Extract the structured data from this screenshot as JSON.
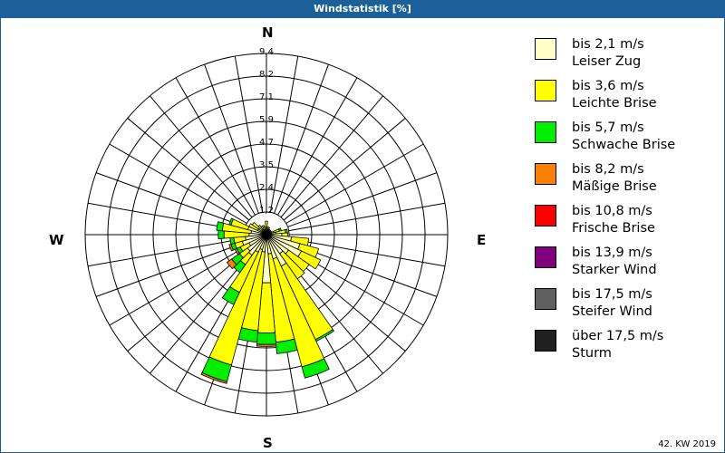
{
  "title": "Windstatistik [%]",
  "footer": "42. KW 2019",
  "compass": {
    "n": "N",
    "e": "E",
    "s": "S",
    "w": "W"
  },
  "legend": [
    {
      "line1": "bis 2,1 m/s",
      "line2": "Leiser Zug",
      "color": "#ffffc8"
    },
    {
      "line1": "bis 3,6 m/s",
      "line2": "Leichte Brise",
      "color": "#ffff00"
    },
    {
      "line1": "bis 5,7 m/s",
      "line2": "Schwache Brise",
      "color": "#00ee00"
    },
    {
      "line1": "bis 8,2 m/s",
      "line2": "Mäßige Brise",
      "color": "#ff8000"
    },
    {
      "line1": "bis 10,8 m/s",
      "line2": "Frische Brise",
      "color": "#ff0000"
    },
    {
      "line1": "bis 13,9 m/s",
      "line2": "Starker Wind",
      "color": "#800080"
    },
    {
      "line1": "bis 17,5 m/s",
      "line2": "Steifer Wind",
      "color": "#606060"
    },
    {
      "line1": "über 17,5 m/s",
      "line2": "Sturm",
      "color": "#202020"
    }
  ],
  "chart_data": {
    "type": "polar-bar",
    "title": "Windstatistik [%]",
    "ring_labels": [
      "1,2",
      "2,4",
      "3,5",
      "4,7",
      "5,9",
      "7,1",
      "8,2",
      "9,4"
    ],
    "rmax": 9.4,
    "sector_width_deg": 10,
    "series_names": [
      "bis 2,1 m/s",
      "bis 3,6 m/s",
      "bis 5,7 m/s",
      "bis 8,2 m/s"
    ],
    "sectors": [
      {
        "dir": 0,
        "values": [
          0.2,
          0.5,
          0,
          0
        ]
      },
      {
        "dir": 10,
        "values": [
          0.2,
          0.2,
          0,
          0
        ]
      },
      {
        "dir": 20,
        "values": [
          0.3,
          0.1,
          0,
          0
        ]
      },
      {
        "dir": 30,
        "values": [
          0.2,
          0.1,
          0,
          0
        ]
      },
      {
        "dir": 40,
        "values": [
          0.2,
          0.1,
          0,
          0
        ]
      },
      {
        "dir": 50,
        "values": [
          0.2,
          0.1,
          0,
          0
        ]
      },
      {
        "dir": 60,
        "values": [
          0.2,
          0.1,
          0,
          0
        ]
      },
      {
        "dir": 70,
        "values": [
          0.4,
          0.3,
          0.1,
          0
        ]
      },
      {
        "dir": 80,
        "values": [
          0.5,
          0.5,
          0.1,
          0
        ]
      },
      {
        "dir": 90,
        "values": [
          0.8,
          0.3,
          0,
          0
        ]
      },
      {
        "dir": 100,
        "values": [
          1.3,
          0.9,
          0,
          0
        ]
      },
      {
        "dir": 110,
        "values": [
          1.8,
          1.0,
          0,
          0
        ]
      },
      {
        "dir": 120,
        "values": [
          2.0,
          1.1,
          0,
          0
        ]
      },
      {
        "dir": 130,
        "values": [
          1.4,
          1.3,
          0,
          0
        ]
      },
      {
        "dir": 140,
        "values": [
          1.2,
          1.6,
          0,
          0
        ]
      },
      {
        "dir": 150,
        "values": [
          1.8,
          4.2,
          0.1,
          0
        ]
      },
      {
        "dir": 160,
        "values": [
          1.3,
          5.8,
          0.6,
          0
        ]
      },
      {
        "dir": 170,
        "values": [
          1.0,
          4.6,
          0.6,
          0
        ]
      },
      {
        "dir": 180,
        "values": [
          2.5,
          2.6,
          0.6,
          0.1
        ]
      },
      {
        "dir": 190,
        "values": [
          0.9,
          4.1,
          0.6,
          0
        ]
      },
      {
        "dir": 200,
        "values": [
          0.8,
          6.2,
          0.9,
          0.1
        ]
      },
      {
        "dir": 210,
        "values": [
          1.0,
          2.3,
          0.7,
          0
        ]
      },
      {
        "dir": 220,
        "values": [
          1.3,
          0.6,
          0.5,
          0
        ]
      },
      {
        "dir": 230,
        "values": [
          1.2,
          0.5,
          0.5,
          0.3
        ]
      },
      {
        "dir": 240,
        "values": [
          1.0,
          0.5,
          0.2,
          0.1
        ]
      },
      {
        "dir": 250,
        "values": [
          1.3,
          0.4,
          0.2,
          0.1
        ]
      },
      {
        "dir": 260,
        "values": [
          1.1,
          0.6,
          0.2,
          0
        ]
      },
      {
        "dir": 270,
        "values": [
          0.9,
          1.3,
          0.3,
          0
        ]
      },
      {
        "dir": 280,
        "values": [
          0.8,
          1.5,
          0.3,
          0
        ]
      },
      {
        "dir": 290,
        "values": [
          1.0,
          0.9,
          0.1,
          0
        ]
      },
      {
        "dir": 300,
        "values": [
          0.5,
          0.5,
          0,
          0
        ]
      },
      {
        "dir": 310,
        "values": [
          0.5,
          0.4,
          0,
          0
        ]
      },
      {
        "dir": 320,
        "values": [
          0.3,
          0.3,
          0,
          0
        ]
      },
      {
        "dir": 330,
        "values": [
          0.3,
          0.2,
          0,
          0
        ]
      },
      {
        "dir": 340,
        "values": [
          0.2,
          0.3,
          0,
          0
        ]
      },
      {
        "dir": 350,
        "values": [
          0.2,
          0.2,
          0,
          0
        ]
      }
    ],
    "legend_position": "right"
  }
}
